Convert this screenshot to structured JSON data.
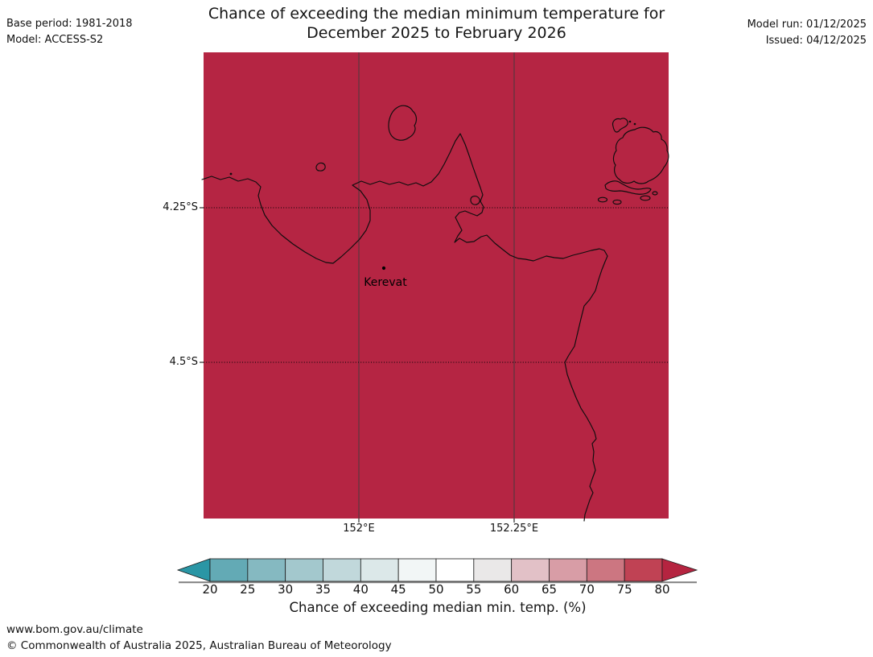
{
  "header": {
    "title_line1": "Chance of exceeding the median minimum temperature for",
    "title_line2": "December 2025 to February 2026",
    "base_period": "Base period: 1981-2018",
    "model": "Model: ACCESS-S2",
    "model_run": "Model run: 01/12/2025",
    "issued": "Issued: 04/12/2025"
  },
  "map": {
    "fill_color": "#b52543",
    "coastline_color": "#0d0d0d",
    "place": {
      "name": "Kerevat"
    },
    "lat_labels": [
      "4.25°S",
      "4.5°S"
    ],
    "lon_labels": [
      "152°E",
      "152.25°E"
    ]
  },
  "colorbar": {
    "label": "Chance of exceeding median min. temp. (%)",
    "ticks": [
      20,
      25,
      30,
      35,
      40,
      45,
      50,
      55,
      60,
      65,
      70,
      75,
      80
    ],
    "under_color": "#2a96a5",
    "over_color": "#b52440",
    "segment_colors": [
      "#63aab5",
      "#85b9c1",
      "#a3c8cd",
      "#c1d8db",
      "#dce8e9",
      "#f2f6f6",
      "#ffffff",
      "#eae8e8",
      "#e2c1c7",
      "#d89da6",
      "#cc7681",
      "#c04254"
    ]
  },
  "footer": {
    "url": "www.bom.gov.au/climate",
    "copyright": "© Commonwealth of Australia 2025, Australian Bureau of Meteorology"
  },
  "chart_data": {
    "type": "heatmap",
    "title": "Chance of exceeding the median minimum temperature for December 2025 to February 2026",
    "scale_label": "Chance of exceeding median min. temp. (%)",
    "scale_ticks": [
      20,
      25,
      30,
      35,
      40,
      45,
      50,
      55,
      60,
      65,
      70,
      75,
      80
    ],
    "lon_gridlines": [
      "152°E",
      "152.25°E"
    ],
    "lat_gridlines": [
      "4.25°S",
      "4.5°S"
    ],
    "marked_place": "Kerevat",
    "field_value": "entire mapped region shaded in the >80% class",
    "base_period": "1981-2018",
    "model": "ACCESS-S2",
    "model_run": "01/12/2025",
    "issued": "04/12/2025"
  }
}
